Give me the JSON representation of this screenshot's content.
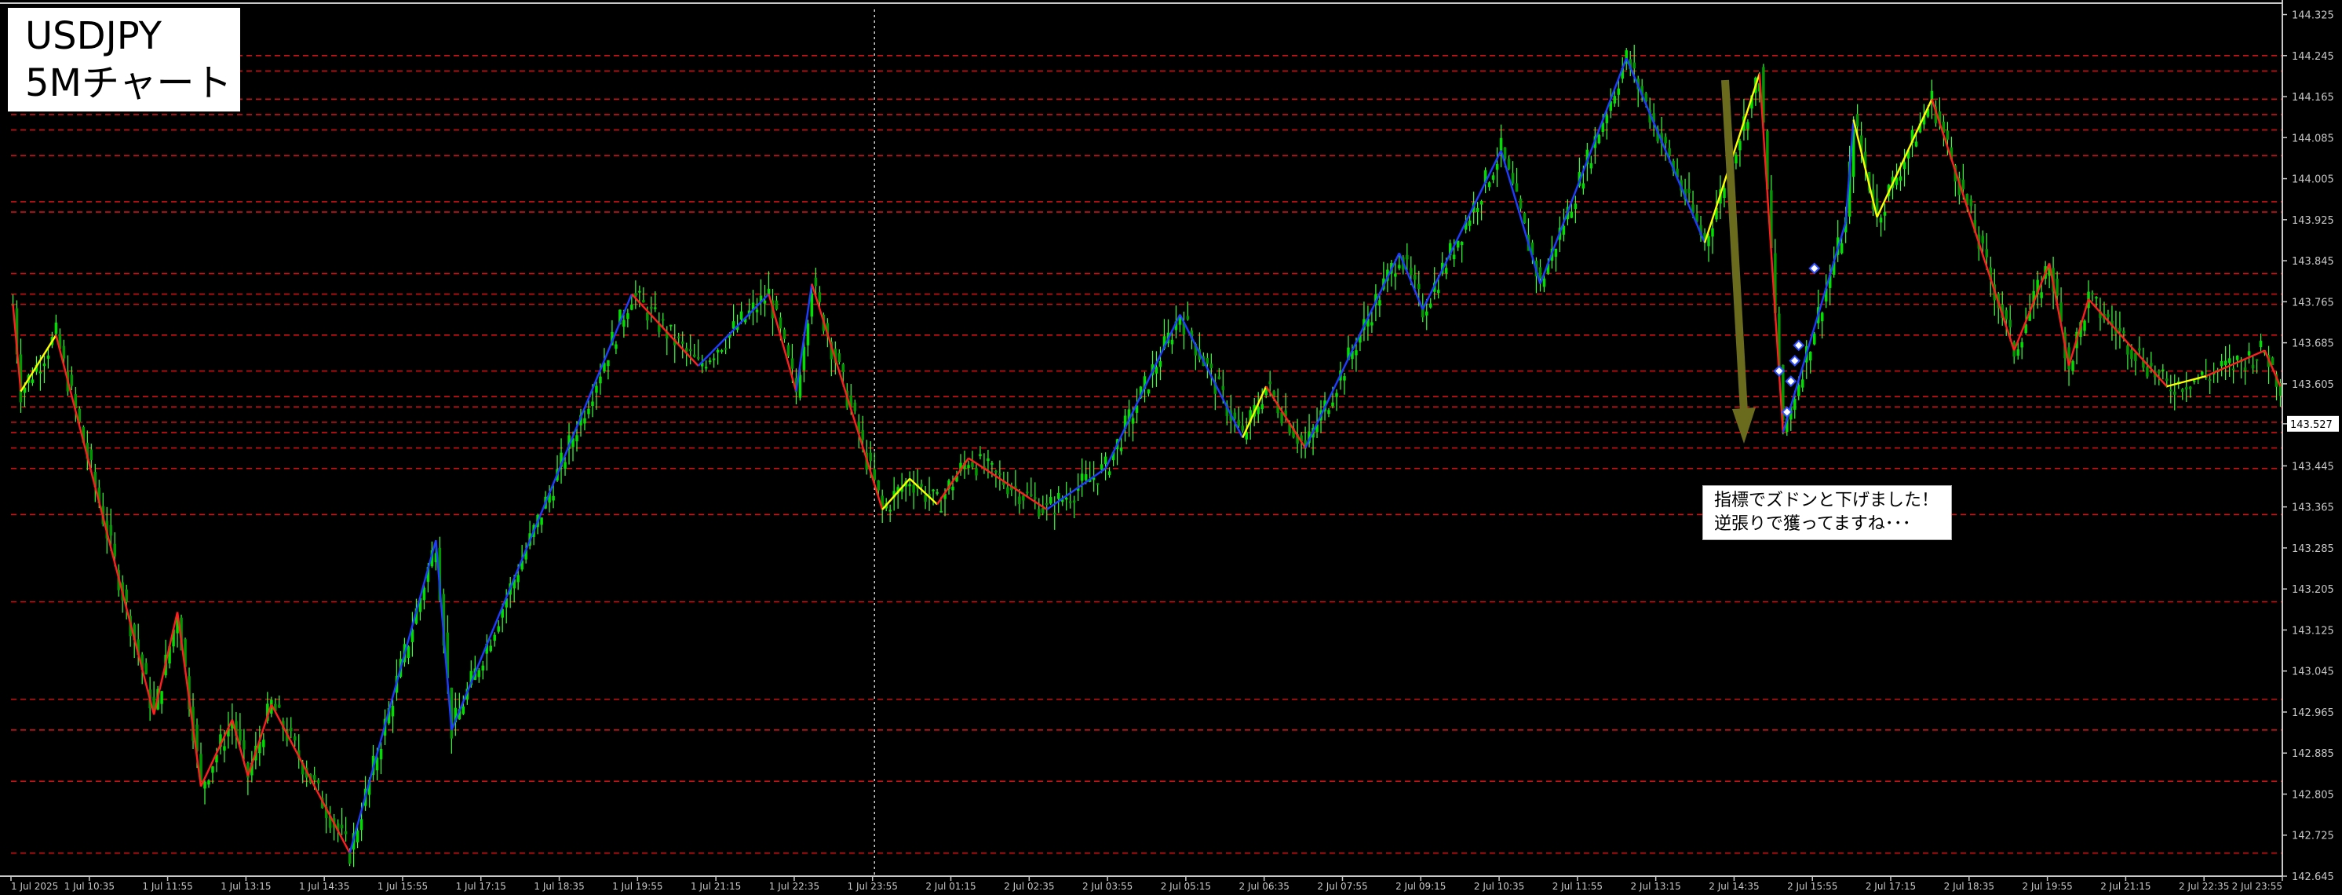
{
  "chart_title": {
    "symbol": "USDJPY",
    "timeframe": "5Mチャート"
  },
  "annotation": {
    "line1": "指標でズドンと下げました！",
    "line2": "逆張りで獲ってますね･･･"
  },
  "colors": {
    "background": "#000000",
    "axis": "#c8c8c8",
    "candle": "#00e000",
    "candle_wick": "#3cff3c",
    "zigzag_up": "#1e3cff",
    "zigzag_down": "#ff1e1e",
    "zigzag_yellow": "#ffff00",
    "level_line": "#d01010",
    "arrow": "#6b6b1e",
    "price_tag_bg": "#ffffff"
  },
  "chart_data": {
    "type": "line",
    "title": "",
    "symbol": "USDJPY",
    "timeframe": "M5",
    "y_tick_labels": [
      "144.325",
      "144.245",
      "144.165",
      "144.085",
      "144.005",
      "143.925",
      "143.845",
      "143.765",
      "143.685",
      "143.605",
      "143.527",
      "143.445",
      "143.365",
      "143.285",
      "143.205",
      "143.125",
      "143.045",
      "142.965",
      "142.885",
      "142.805",
      "142.725",
      "142.645"
    ],
    "y_ticks": [
      144.325,
      144.245,
      144.165,
      144.085,
      144.005,
      143.925,
      143.845,
      143.765,
      143.685,
      143.605,
      143.527,
      143.445,
      143.365,
      143.285,
      143.205,
      143.125,
      143.045,
      142.965,
      142.885,
      142.805,
      142.725,
      142.645
    ],
    "ylim": [
      142.645,
      144.335
    ],
    "current_price": "143.527",
    "x_tick_labels": [
      "1 Jul 2025",
      "1 Jul 10:35",
      "1 Jul 11:55",
      "1 Jul 13:15",
      "1 Jul 14:35",
      "1 Jul 15:55",
      "1 Jul 17:15",
      "1 Jul 18:35",
      "1 Jul 19:55",
      "1 Jul 21:15",
      "1 Jul 22:35",
      "1 Jul 23:55",
      "2 Jul 01:15",
      "2 Jul 02:35",
      "2 Jul 03:55",
      "2 Jul 05:15",
      "2 Jul 06:35",
      "2 Jul 07:55",
      "2 Jul 09:15",
      "2 Jul 10:35",
      "2 Jul 11:55",
      "2 Jul 13:15",
      "2 Jul 14:35",
      "2 Jul 15:55",
      "2 Jul 17:15",
      "2 Jul 18:35",
      "2 Jul 19:55",
      "2 Jul 21:15",
      "2 Jul 22:35",
      "2 Jul 23:55"
    ],
    "bar_count": 580,
    "day_separator_bar": 220,
    "zigzag": [
      {
        "bar": 0,
        "price": 143.76,
        "color": "red"
      },
      {
        "bar": 2,
        "price": 143.59,
        "color": "yellow"
      },
      {
        "bar": 11,
        "price": 143.7,
        "color": "red"
      },
      {
        "bar": 36,
        "price": 142.96,
        "color": "red"
      },
      {
        "bar": 42,
        "price": 143.16,
        "color": "red"
      },
      {
        "bar": 48,
        "price": 142.82,
        "color": "red"
      },
      {
        "bar": 56,
        "price": 142.95,
        "color": "red"
      },
      {
        "bar": 60,
        "price": 142.84,
        "color": "red"
      },
      {
        "bar": 66,
        "price": 142.98,
        "color": "red"
      },
      {
        "bar": 86,
        "price": 142.69,
        "color": "blue"
      },
      {
        "bar": 108,
        "price": 143.3,
        "color": "blue"
      },
      {
        "bar": 112,
        "price": 142.93,
        "color": "blue"
      },
      {
        "bar": 158,
        "price": 143.78,
        "color": "red"
      },
      {
        "bar": 175,
        "price": 143.64,
        "color": "blue"
      },
      {
        "bar": 193,
        "price": 143.78,
        "color": "red"
      },
      {
        "bar": 200,
        "price": 143.59,
        "color": "blue"
      },
      {
        "bar": 204,
        "price": 143.8,
        "color": "red"
      },
      {
        "bar": 222,
        "price": 143.36,
        "color": "yellow"
      },
      {
        "bar": 229,
        "price": 143.42,
        "color": "yellow"
      },
      {
        "bar": 236,
        "price": 143.37,
        "color": "red"
      },
      {
        "bar": 244,
        "price": 143.46,
        "color": "red"
      },
      {
        "bar": 264,
        "price": 143.36,
        "color": "blue"
      },
      {
        "bar": 279,
        "price": 143.44,
        "color": "blue"
      },
      {
        "bar": 298,
        "price": 143.74,
        "color": "blue"
      },
      {
        "bar": 314,
        "price": 143.5,
        "color": "yellow"
      },
      {
        "bar": 320,
        "price": 143.6,
        "color": "red"
      },
      {
        "bar": 330,
        "price": 143.48,
        "color": "blue"
      },
      {
        "bar": 354,
        "price": 143.86,
        "color": "blue"
      },
      {
        "bar": 360,
        "price": 143.75,
        "color": "blue"
      },
      {
        "bar": 380,
        "price": 144.06,
        "color": "blue"
      },
      {
        "bar": 390,
        "price": 143.8,
        "color": "blue"
      },
      {
        "bar": 412,
        "price": 144.24,
        "color": "blue"
      },
      {
        "bar": 432,
        "price": 143.88,
        "color": "yellow"
      },
      {
        "bar": 446,
        "price": 144.21,
        "color": "red"
      },
      {
        "bar": 452,
        "price": 143.51,
        "color": "blue"
      },
      {
        "bar": 468,
        "price": 143.92,
        "color": "blue"
      },
      {
        "bar": 470,
        "price": 144.12,
        "color": "yellow"
      },
      {
        "bar": 476,
        "price": 143.93,
        "color": "yellow"
      },
      {
        "bar": 490,
        "price": 144.16,
        "color": "red"
      },
      {
        "bar": 511,
        "price": 143.67,
        "color": "red"
      },
      {
        "bar": 520,
        "price": 143.84,
        "color": "red"
      },
      {
        "bar": 525,
        "price": 143.64,
        "color": "red"
      },
      {
        "bar": 530,
        "price": 143.77,
        "color": "red"
      },
      {
        "bar": 550,
        "price": 143.6,
        "color": "yellow"
      },
      {
        "bar": 560,
        "price": 143.62,
        "color": "red"
      },
      {
        "bar": 575,
        "price": 143.67,
        "color": "red"
      },
      {
        "bar": 579,
        "price": 143.6,
        "color": "red"
      }
    ],
    "levels": [
      144.245,
      144.215,
      144.16,
      144.13,
      144.1,
      144.05,
      143.96,
      143.94,
      143.82,
      143.78,
      143.76,
      143.7,
      143.63,
      143.58,
      143.56,
      143.53,
      143.51,
      143.48,
      143.44,
      143.35,
      143.18,
      142.99,
      142.93,
      142.83,
      142.69
    ],
    "signal_markers": [
      {
        "bar": 451,
        "price": 143.63
      },
      {
        "bar": 453,
        "price": 143.55
      },
      {
        "bar": 454,
        "price": 143.61
      },
      {
        "bar": 455,
        "price": 143.65
      },
      {
        "bar": 456,
        "price": 143.68
      },
      {
        "bar": 460,
        "price": 143.83
      }
    ],
    "grid": false,
    "legend": "none"
  }
}
